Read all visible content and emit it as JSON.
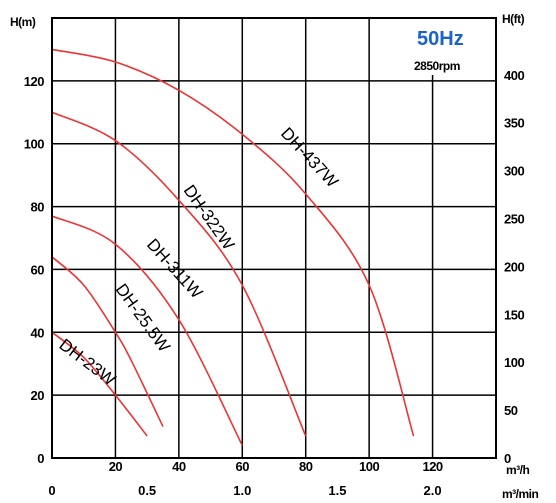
{
  "chart_data": {
    "type": "line",
    "title": "",
    "freq_label": "50Hz",
    "rpm_label": "2850rpm",
    "ylabel_left": "H(m)",
    "ylabel_right": "H(ft)",
    "xlabel_primary": "m³/h",
    "xlabel_secondary": "m³/min",
    "x_ticks": [
      "20",
      "40",
      "60",
      "80",
      "100",
      "120"
    ],
    "x2_ticks": [
      "0",
      "0.5",
      "1.0",
      "1.5",
      "2.0"
    ],
    "y_ticks": [
      "0",
      "20",
      "40",
      "60",
      "80",
      "100",
      "120"
    ],
    "y2_ticks": [
      "0",
      "50",
      "100",
      "150",
      "200",
      "250",
      "300",
      "350",
      "400"
    ],
    "xlim": [
      0,
      140
    ],
    "ylim": [
      0,
      140
    ],
    "grid": true,
    "series": [
      {
        "name": "DH-23W",
        "x": [
          0,
          10,
          20,
          30
        ],
        "y": [
          40,
          32,
          20,
          7
        ]
      },
      {
        "name": "DH-25.5W",
        "x": [
          0,
          10,
          20,
          25,
          35
        ],
        "y": [
          64,
          55,
          40,
          31,
          10
        ]
      },
      {
        "name": "DH-311W",
        "x": [
          0,
          20,
          40,
          60
        ],
        "y": [
          77,
          68,
          44,
          4
        ]
      },
      {
        "name": "DH-322W",
        "x": [
          0,
          20,
          40,
          60,
          80
        ],
        "y": [
          110,
          101,
          82,
          55,
          7
        ]
      },
      {
        "name": "DH-437W",
        "x": [
          0,
          20,
          40,
          60,
          80,
          100,
          114
        ],
        "y": [
          130,
          126,
          117,
          103,
          84,
          55,
          7
        ]
      }
    ]
  }
}
